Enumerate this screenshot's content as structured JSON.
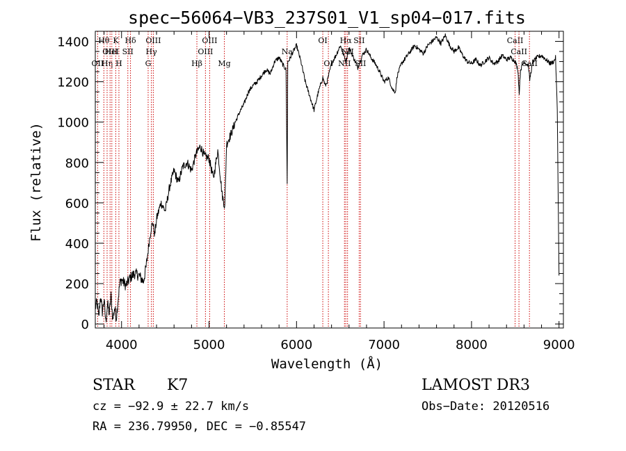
{
  "chart_data": {
    "type": "line",
    "title": "spec−56064−VB3_237S01_V1_sp04−017.fits",
    "xlabel": "Wavelength (Å)",
    "ylabel": "Flux (relative)",
    "xlim": [
      3700,
      9050
    ],
    "ylim": [
      -20,
      1450
    ],
    "xticks": [
      4000,
      5000,
      6000,
      7000,
      8000,
      9000
    ],
    "yticks": [
      0,
      200,
      400,
      600,
      800,
      1000,
      1200,
      1400
    ],
    "xtick_labels": [
      "4000",
      "5000",
      "6000",
      "7000",
      "8000",
      "9000"
    ],
    "ytick_labels": [
      "0",
      "200",
      "400",
      "600",
      "800",
      "1000",
      "1200",
      "1400"
    ],
    "grid": false,
    "series": [
      {
        "name": "spectrum",
        "x": [
          3700,
          3720,
          3740,
          3760,
          3780,
          3800,
          3820,
          3840,
          3860,
          3880,
          3900,
          3920,
          3940,
          3960,
          3980,
          4000,
          4050,
          4100,
          4150,
          4200,
          4250,
          4280,
          4300,
          4320,
          4340,
          4360,
          4380,
          4400,
          4450,
          4500,
          4550,
          4600,
          4650,
          4700,
          4750,
          4800,
          4850,
          4900,
          4950,
          5000,
          5050,
          5100,
          5150,
          5180,
          5200,
          5250,
          5300,
          5350,
          5400,
          5450,
          5500,
          5550,
          5600,
          5650,
          5700,
          5750,
          5800,
          5850,
          5880,
          5893,
          5900,
          5920,
          5950,
          6000,
          6050,
          6100,
          6150,
          6200,
          6250,
          6300,
          6330,
          6350,
          6400,
          6450,
          6500,
          6550,
          6563,
          6600,
          6650,
          6700,
          6750,
          6800,
          6850,
          6900,
          6950,
          7000,
          7050,
          7100,
          7130,
          7150,
          7200,
          7250,
          7300,
          7350,
          7400,
          7450,
          7500,
          7550,
          7600,
          7650,
          7700,
          7750,
          7800,
          7850,
          7900,
          7950,
          8000,
          8050,
          8100,
          8150,
          8200,
          8250,
          8300,
          8350,
          8400,
          8450,
          8500,
          8530,
          8545,
          8560,
          8600,
          8650,
          8665,
          8700,
          8750,
          8800,
          8850,
          8900,
          8940,
          8960,
          8980,
          9000
        ],
        "y": [
          80,
          110,
          30,
          140,
          60,
          120,
          10,
          100,
          50,
          140,
          20,
          80,
          30,
          120,
          200,
          220,
          190,
          230,
          250,
          240,
          210,
          280,
          350,
          420,
          480,
          500,
          440,
          520,
          600,
          560,
          680,
          760,
          700,
          780,
          800,
          760,
          840,
          880,
          830,
          820,
          720,
          860,
          640,
          580,
          890,
          940,
          1000,
          1050,
          1090,
          1150,
          1180,
          1200,
          1230,
          1260,
          1240,
          1300,
          1320,
          1280,
          1260,
          700,
          1300,
          1310,
          1340,
          1380,
          1300,
          1200,
          1130,
          1060,
          1150,
          1220,
          1180,
          1200,
          1290,
          1330,
          1380,
          1320,
          1300,
          1370,
          1320,
          1270,
          1330,
          1360,
          1320,
          1290,
          1250,
          1200,
          1220,
          1160,
          1150,
          1230,
          1290,
          1320,
          1350,
          1380,
          1360,
          1340,
          1380,
          1400,
          1420,
          1390,
          1430,
          1380,
          1350,
          1370,
          1330,
          1300,
          1290,
          1310,
          1280,
          1300,
          1320,
          1290,
          1300,
          1330,
          1310,
          1320,
          1300,
          1260,
          1140,
          1260,
          1300,
          1280,
          1210,
          1300,
          1320,
          1330,
          1310,
          1290,
          1300,
          1320,
          1060,
          240
        ]
      }
    ],
    "line_markers": [
      {
        "x": 3727,
        "labels": [
          "OII"
        ],
        "row": 2
      },
      {
        "x": 3798,
        "labels": [
          "Hθ"
        ],
        "row": 0
      },
      {
        "x": 3835,
        "labels": [
          "Hη"
        ],
        "row": 2
      },
      {
        "x": 3869,
        "labels": [
          "OIII"
        ],
        "row": 1
      },
      {
        "x": 3889,
        "labels": [
          "HeI"
        ],
        "row": 1
      },
      {
        "x": 3934,
        "labels": [
          "K"
        ],
        "row": 0
      },
      {
        "x": 3970,
        "labels": [
          "H"
        ],
        "row": 2
      },
      {
        "x": 4072,
        "labels": [
          "SII"
        ],
        "row": 1
      },
      {
        "x": 4102,
        "labels": [
          "Hδ"
        ],
        "row": 0
      },
      {
        "x": 4304,
        "labels": [
          "G"
        ],
        "row": 2
      },
      {
        "x": 4341,
        "labels": [
          "Hγ"
        ],
        "row": 1
      },
      {
        "x": 4363,
        "labels": [
          "OIII"
        ],
        "row": 0
      },
      {
        "x": 4861,
        "labels": [
          "Hβ"
        ],
        "row": 2
      },
      {
        "x": 4959,
        "labels": [
          "OIII"
        ],
        "row": 1
      },
      {
        "x": 5007,
        "labels": [
          "OIII"
        ],
        "row": 0
      },
      {
        "x": 5175,
        "labels": [
          "Mg"
        ],
        "row": 2
      },
      {
        "x": 5893,
        "labels": [
          "Na"
        ],
        "row": 1
      },
      {
        "x": 6300,
        "labels": [
          "OI"
        ],
        "row": 0
      },
      {
        "x": 6364,
        "labels": [
          "OI"
        ],
        "row": 2
      },
      {
        "x": 6548,
        "labels": [
          "NII"
        ],
        "row": 2
      },
      {
        "x": 6563,
        "labels": [
          "Hα"
        ],
        "row": 0
      },
      {
        "x": 6583,
        "labels": [
          "NII"
        ],
        "row": 1
      },
      {
        "x": 6716,
        "labels": [
          "SII"
        ],
        "row": 0
      },
      {
        "x": 6731,
        "labels": [
          "SII"
        ],
        "row": 2
      },
      {
        "x": 8498,
        "labels": [
          "CaII"
        ],
        "row": 0
      },
      {
        "x": 8542,
        "labels": [
          "CaII"
        ],
        "row": 1
      },
      {
        "x": 8662,
        "labels": [
          "CaII"
        ],
        "row": 2
      }
    ],
    "annotations": {
      "class_label": "STAR",
      "subclass_label": "K7",
      "survey_label": "LAMOST DR3",
      "cz_text": "cz = −92.9 ± 22.7 km/s",
      "obs_date_text": "Obs−Date: 20120516",
      "radec_text": "RA = 236.79950, DEC =  −0.85547"
    },
    "colors": {
      "spectrum": "#000000",
      "marker_line": "#cc0000",
      "text": "#000000"
    }
  }
}
